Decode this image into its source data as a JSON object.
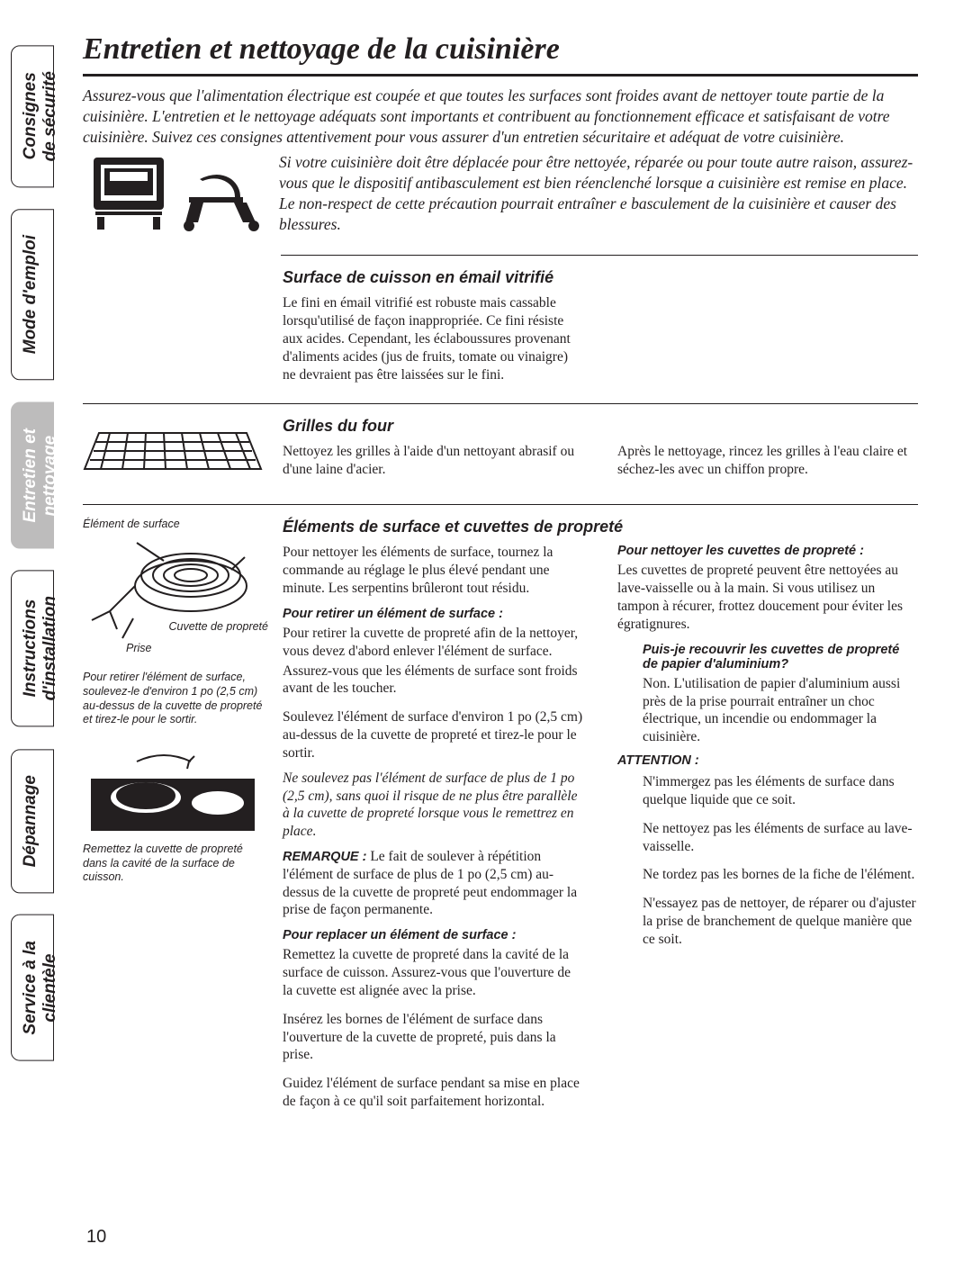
{
  "page": {
    "number": "10",
    "title": "Entretien et nettoyage de la cuisinière"
  },
  "tabs": [
    {
      "label": "Consignes\nde sécurité",
      "active": false
    },
    {
      "label": "Mode d'emploi",
      "active": false
    },
    {
      "label": "Entretien et\nnettoyage",
      "active": true
    },
    {
      "label": "Instructions\nd'installation",
      "active": false
    },
    {
      "label": "Dépannage",
      "active": false
    },
    {
      "label": "Service à la\nclientèle",
      "active": false
    }
  ],
  "intro": "Assurez-vous que l'alimentation électrique est coupée et que toutes les surfaces sont froides avant de nettoyer toute partie de la cuisinière. L'entretien et le nettoyage adéquats sont importants et contribuent au fonctionnement efficace et satisfaisant de votre cuisinière. Suivez ces consignes attentivement pour vous assurer d'un entretien sécuritaire et adéquat de votre cuisinière.",
  "warning": "Si votre cuisinière doit être déplacée pour être nettoyée, réparée ou pour toute autre raison, assurez-vous que le dispositif antibasculement est bien réenclenché lorsque a cuisinière est remise en place. Le non-respect de cette précaution pourrait entraîner e basculement de la cuisinière et causer des blessures.",
  "sections": {
    "enamel": {
      "title": "Surface de cuisson en émail vitrifié",
      "body": "Le fini en émail vitrifié est robuste mais cassable lorsqu'utilisé de façon inappropriée. Ce fini résiste aux acides. Cependant, les éclaboussures provenant d'aliments acides (jus de fruits, tomate ou vinaigre) ne devraient pas être laissées sur le fini."
    },
    "racks": {
      "title": "Grilles du four",
      "left": "Nettoyez les grilles à l'aide d'un nettoyant abrasif ou d'une laine d'acier.",
      "right": "Après le nettoyage, rincez les grilles à l'eau claire et séchez-les avec un chiffon propre."
    },
    "elements": {
      "title": "Éléments de surface et cuvettes de propreté",
      "fig1": {
        "label_top": "Élément de surface",
        "label_right": "Cuvette de propreté",
        "label_bottom": "Prise",
        "caption": "Pour retirer l'élément de surface, soulevez-le d'environ 1 po (2,5 cm) au-dessus de la cuvette de propreté et tirez-le pour le sortir."
      },
      "fig2": {
        "caption": "Remettez la cuvette de propreté dans la cavité de la surface de cuisson."
      },
      "col1": {
        "p1": "Pour nettoyer les éléments de surface, tournez la commande au réglage le plus élevé pendant une minute. Les serpentins brûleront tout résidu.",
        "h1": "Pour retirer un élément de surface :",
        "p2": "Pour retirer la cuvette de propreté afin de la nettoyer, vous devez d'abord enlever l'élément de surface.",
        "p3": "Assurez-vous que les éléments de surface sont froids avant de les toucher.",
        "p4": "Soulevez l'élément de surface d'environ 1 po (2,5 cm) au-dessus de la cuvette de propreté et tirez-le pour le sortir.",
        "p5": "Ne soulevez pas l'élément de surface de plus de 1 po (2,5 cm), sans quoi il risque de ne plus être parallèle à la cuvette de propreté lorsque vous le remettrez en place.",
        "remark_label": "REMARQUE :",
        "remark": " Le fait de soulever à répétition l'élément de surface de plus de 1 po (2,5 cm) au-dessus de la cuvette de propreté peut endommager la prise de façon permanente.",
        "h2": "Pour replacer un élément de surface :",
        "p6": "Remettez la cuvette de propreté dans la cavité de la surface de cuisson. Assurez-vous que l'ouverture de la cuvette est alignée avec la prise.",
        "p7": "Insérez les bornes de l'élément de surface dans l'ouverture de la cuvette de propreté, puis dans la prise.",
        "p8": "Guidez l'élément de surface pendant sa mise en place de façon à ce qu'il soit parfaitement horizontal."
      },
      "col2": {
        "h1": "Pour nettoyer les cuvettes de propreté :",
        "p1": "Les cuvettes de propreté peuvent être nettoyées au lave-vaisselle ou à la main. Si vous utilisez un tampon à récurer, frottez doucement pour éviter les égratignures.",
        "h2": "Puis-je recouvrir les cuvettes de propreté de papier d'aluminium?",
        "p2": "Non. L'utilisation de papier d'aluminium aussi près de la prise pourrait entraîner un choc électrique, un incendie ou endommager la cuisinière.",
        "attention": "ATTENTION :",
        "a1": "N'immergez pas les éléments de surface dans quelque liquide que ce soit.",
        "a2": "Ne nettoyez pas les éléments de surface au lave-vaisselle.",
        "a3": "Ne tordez pas les bornes de la fiche de l'élément.",
        "a4": "N'essayez pas de nettoyer, de réparer ou d'ajuster la prise de branchement de quelque manière que ce soit."
      }
    }
  },
  "colors": {
    "text": "#231f20",
    "tab_active_bg": "#bdbcbc",
    "tab_active_fg": "#ffffff",
    "background": "#ffffff"
  }
}
